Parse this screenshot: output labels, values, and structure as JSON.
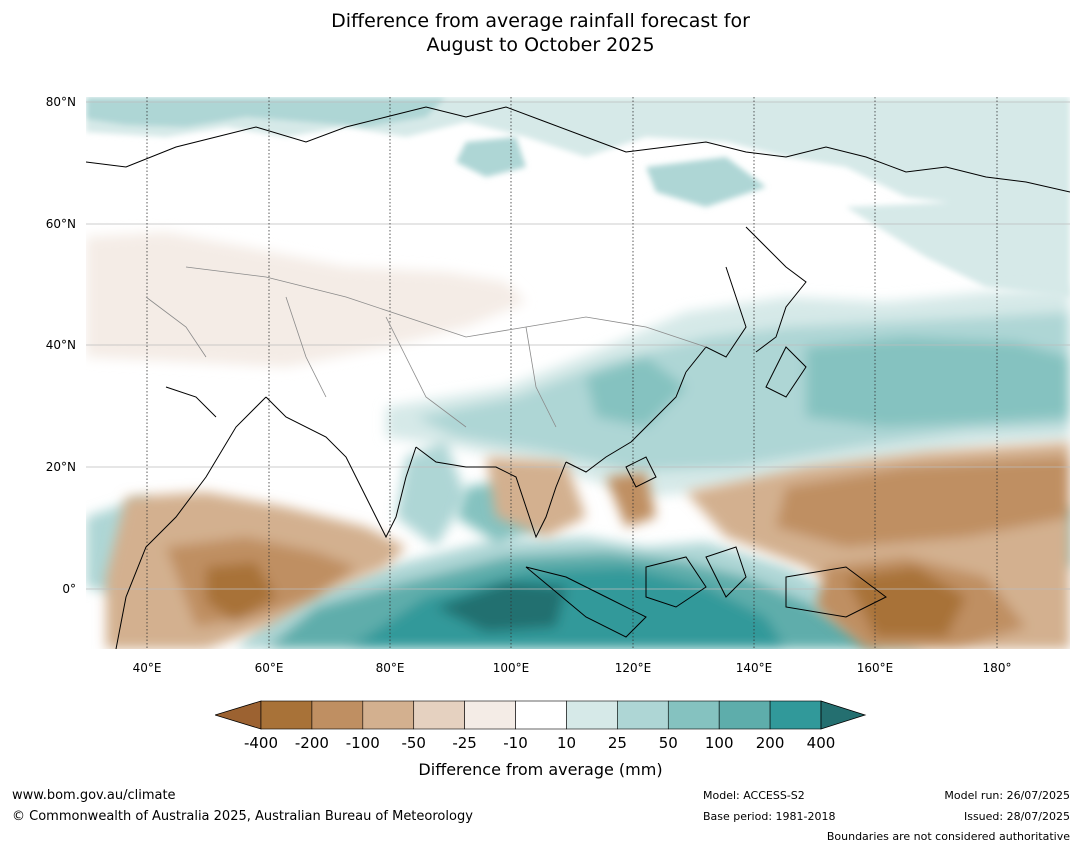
{
  "title": {
    "line1": "Difference from average rainfall forecast for",
    "line2": "August to October 2025"
  },
  "map": {
    "lat_labels": [
      "80°N",
      "60°N",
      "40°N",
      "20°N",
      "0°"
    ],
    "lon_labels": [
      "40°E",
      "60°E",
      "80°E",
      "100°E",
      "120°E",
      "140°E",
      "160°E",
      "180°"
    ],
    "lon_range": [
      30,
      192
    ],
    "lat_range": [
      -10,
      81
    ]
  },
  "colorbar": {
    "title": "Difference from average (mm)",
    "labels": [
      "-400",
      "-200",
      "-100",
      "-50",
      "-25",
      "-10",
      "10",
      "25",
      "50",
      "100",
      "200",
      "400"
    ],
    "colors": [
      "#9c6231",
      "#a87238",
      "#bf8f62",
      "#d3b08f",
      "#e5d1c0",
      "#f4ece6",
      "#ffffff",
      "#d6e9e8",
      "#aed6d5",
      "#85c2c0",
      "#5eadab",
      "#31999a",
      "#246f70"
    ]
  },
  "footer": {
    "url": "www.bom.gov.au/climate",
    "copyright": "© Commonwealth of Australia 2025, Australian Bureau of Meteorology",
    "model": "Model: ACCESS-S2",
    "base_period": "Base period: 1981-2018",
    "model_run": "Model run: 26/07/2025",
    "issued": "Issued: 28/07/2025",
    "disclaimer": "Boundaries are not considered authoritative"
  }
}
